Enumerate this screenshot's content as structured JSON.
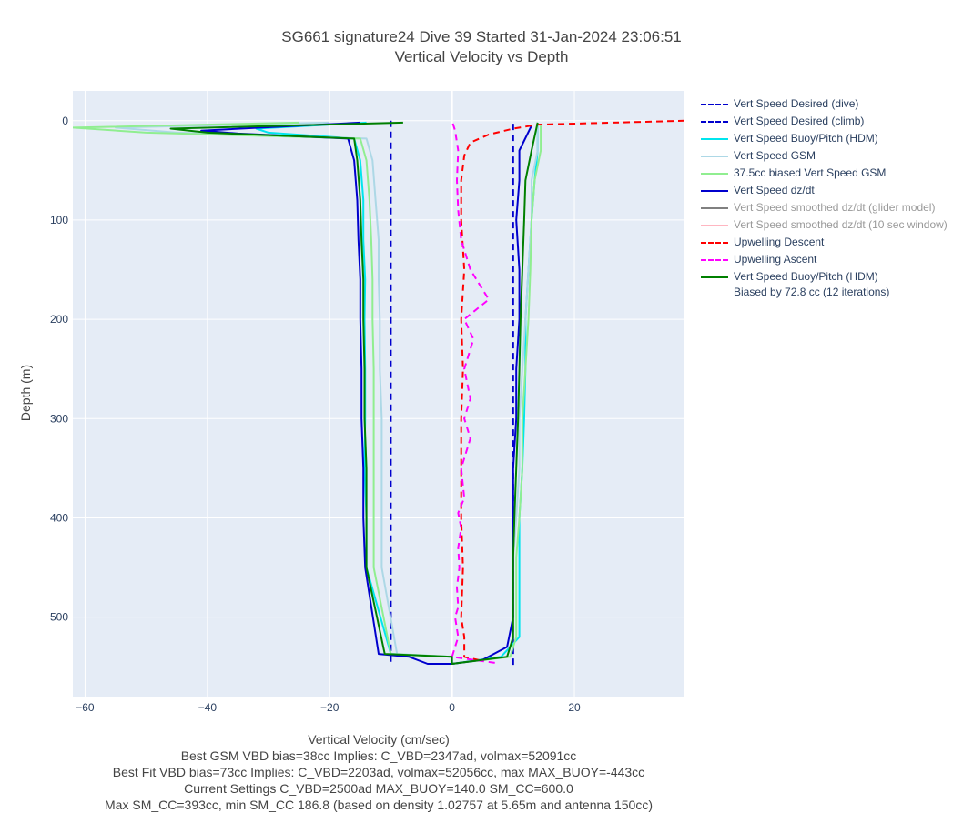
{
  "chart_data": {
    "type": "line",
    "title_lines": [
      "SG661 signature24 Dive 39 Started 31-Jan-2024 23:06:51",
      "Vertical Velocity vs Depth"
    ],
    "xlabel": "Vertical Velocity (cm/sec)",
    "ylabel": "Depth (m)",
    "xlim": [
      -62,
      38
    ],
    "ylim": [
      580,
      -30
    ],
    "x_ticks": [
      -60,
      -40,
      -20,
      0,
      20
    ],
    "x_tick_labels": [
      "−60",
      "−40",
      "−20",
      "0",
      "20"
    ],
    "y_ticks": [
      0,
      100,
      200,
      300,
      400,
      500
    ],
    "y_tick_labels": [
      "0",
      "100",
      "200",
      "300",
      "400",
      "500"
    ],
    "grid": true,
    "legend_position": "right",
    "footer_lines": [
      "Best GSM VBD bias=38cc Implies: C_VBD=2347ad, volmax=52091cc",
      "Best Fit VBD bias=73cc Implies: C_VBD=2203ad, volmax=52056cc, max MAX_BUOY=-443cc",
      "Current Settings C_VBD=2500ad MAX_BUOY=140.0 SM_CC=600.0",
      "Max SM_CC=393cc, min SM_CC 186.8 (based on density 1.02757 at 5.65m and antenna 150cc)"
    ],
    "series": [
      {
        "name": "Vert Speed Desired (dive)",
        "color": "#0000cd",
        "dash": "dash",
        "muted": false,
        "x": [
          -10,
          -10
        ],
        "y": [
          0,
          548
        ]
      },
      {
        "name": "Vert Speed Desired (climb)",
        "color": "#0000cd",
        "dash": "dash",
        "muted": false,
        "x": [
          10,
          10
        ],
        "y": [
          548,
          0
        ]
      },
      {
        "name": "Vert Speed Buoy/Pitch (HDM)",
        "color": "#00e5ee",
        "dash": "solid",
        "muted": false,
        "x": [
          -14,
          -32,
          -30,
          -16,
          -15,
          -14.5,
          -14.5,
          -14.2,
          -14.3,
          -14.2,
          -14.2,
          -14.3,
          -14,
          -14,
          -10,
          0,
          0,
          8,
          11,
          11,
          11,
          11,
          11.5,
          11.8,
          12,
          12,
          12.5,
          13,
          13.5,
          14,
          14
        ],
        "y": [
          2,
          8,
          12,
          18,
          40,
          80,
          120,
          160,
          200,
          250,
          300,
          350,
          400,
          450,
          537,
          540,
          547,
          540,
          520,
          480,
          440,
          400,
          350,
          300,
          250,
          200,
          150,
          100,
          60,
          30,
          5
        ]
      },
      {
        "name": "Vert Speed GSM",
        "color": "#add8e6",
        "dash": "solid",
        "muted": false,
        "x": [
          -20,
          -55,
          -45,
          -14,
          -13,
          -12.5,
          -12,
          -12,
          -11.8,
          -11.8,
          -11.5,
          -11.5,
          -11.5,
          -11.5,
          -9,
          0,
          0,
          9,
          10,
          10,
          10,
          10.5,
          11,
          11,
          11.5,
          12,
          12.5,
          13,
          13,
          14,
          14
        ],
        "y": [
          2,
          7,
          12,
          18,
          40,
          80,
          120,
          160,
          200,
          250,
          300,
          350,
          400,
          450,
          537,
          540,
          547,
          540,
          520,
          480,
          440,
          400,
          350,
          300,
          250,
          200,
          150,
          100,
          60,
          30,
          5
        ]
      },
      {
        "name": "37.5cc biased Vert Speed GSM",
        "color": "#90ee90",
        "dash": "solid",
        "muted": false,
        "x": [
          -25,
          -62,
          -50,
          -15,
          -14,
          -13.5,
          -13.2,
          -13,
          -13,
          -12.8,
          -12.8,
          -12.8,
          -12.8,
          -12.8,
          -10,
          0,
          0,
          9.5,
          10.5,
          10.5,
          10.5,
          11,
          11.5,
          11.5,
          12,
          12.5,
          12.8,
          13,
          13.5,
          14.5,
          14.5
        ],
        "y": [
          2,
          7,
          12,
          18,
          40,
          80,
          120,
          160,
          200,
          250,
          300,
          350,
          400,
          450,
          537,
          540,
          547,
          540,
          520,
          480,
          440,
          400,
          350,
          300,
          250,
          200,
          150,
          100,
          60,
          30,
          5
        ]
      },
      {
        "name": "Vert Speed dz/dt",
        "color": "#0000cd",
        "dash": "solid",
        "muted": false,
        "x": [
          -15,
          -41,
          -35,
          -17,
          -16,
          -15.5,
          -15.3,
          -15,
          -15,
          -14.8,
          -14.8,
          -14.5,
          -14.5,
          -14.2,
          -12,
          -7,
          -4,
          0,
          5,
          9,
          10,
          10,
          10,
          10,
          10.5,
          10.5,
          11,
          11,
          10.5,
          11,
          11,
          13
        ],
        "y": [
          2,
          10,
          13,
          18,
          40,
          80,
          120,
          160,
          200,
          250,
          300,
          350,
          400,
          450,
          537,
          540,
          547,
          547,
          543,
          530,
          500,
          450,
          400,
          350,
          300,
          250,
          200,
          150,
          100,
          60,
          30,
          5
        ]
      },
      {
        "name": "Vert Speed smoothed dz/dt (glider model)",
        "color": "#808080",
        "dash": "solid",
        "muted": true,
        "x": [],
        "y": []
      },
      {
        "name": "Vert Speed smoothed dz/dt (10 sec window)",
        "color": "#ffb6c1",
        "dash": "solid",
        "muted": true,
        "x": [],
        "y": []
      },
      {
        "name": "Upwelling Descent",
        "color": "#ff0000",
        "dash": "dash",
        "muted": false,
        "x": [
          38,
          14,
          10,
          6,
          3,
          2,
          1.5,
          1.5,
          2,
          1.5,
          1.8,
          1.5,
          1.5,
          1.5,
          1.8,
          1.5,
          2,
          2,
          5
        ],
        "y": [
          0,
          4,
          8,
          14,
          22,
          35,
          60,
          100,
          150,
          200,
          250,
          300,
          350,
          400,
          450,
          500,
          520,
          540,
          544
        ]
      },
      {
        "name": "Upwelling Ascent",
        "color": "#ff00ff",
        "dash": "dash",
        "muted": false,
        "x": [
          7,
          0,
          1,
          0.5,
          1,
          0.8,
          1.2,
          1,
          1.5,
          1,
          2,
          1.5,
          3,
          2,
          3,
          2,
          3.5,
          2,
          6,
          3,
          1.5,
          1,
          0.8,
          1,
          0.5,
          0
        ],
        "y": [
          546,
          540,
          520,
          500,
          490,
          470,
          450,
          430,
          410,
          395,
          380,
          350,
          320,
          300,
          280,
          250,
          220,
          200,
          180,
          150,
          120,
          90,
          60,
          30,
          10,
          0
        ]
      },
      {
        "name": "Vert Speed Buoy/Pitch (HDM)\nBiased by 72.8 cc (12 iterations)",
        "color": "#008000",
        "dash": "solid",
        "muted": false,
        "x": [
          -8,
          -46,
          -40,
          -16,
          -15.5,
          -15,
          -14.8,
          -14.5,
          -14.5,
          -14.3,
          -14.3,
          -14,
          -14,
          -14,
          -11,
          0,
          0,
          9,
          10,
          10,
          10,
          10.2,
          10.5,
          10.8,
          11,
          11.2,
          11.5,
          11.8,
          12,
          13,
          14
        ],
        "y": [
          2,
          8,
          12,
          18,
          40,
          80,
          120,
          160,
          200,
          250,
          300,
          350,
          400,
          450,
          537,
          540,
          547,
          540,
          520,
          480,
          440,
          400,
          350,
          300,
          250,
          200,
          150,
          100,
          60,
          30,
          2
        ]
      }
    ]
  }
}
